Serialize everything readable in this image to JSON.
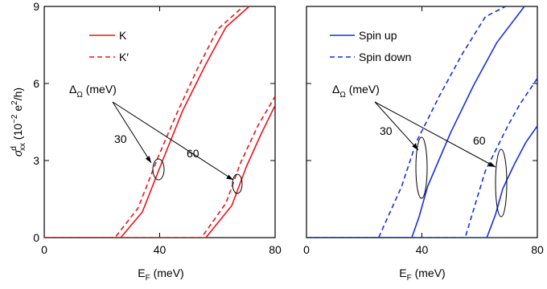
{
  "chart_data": [
    {
      "type": "line",
      "xlim": [
        0,
        80
      ],
      "ylim": [
        0,
        9
      ],
      "xticks": [
        0,
        40,
        80
      ],
      "yticks": [
        0,
        3,
        6,
        9
      ],
      "xlabel": {
        "main": "E",
        "sub": "F",
        "rest": " (meV)"
      },
      "ylabel": {
        "sigma": "σ",
        "sup": "d",
        "sub": "xx",
        "rest1": " (10",
        "exp": "−2",
        "rest2": " e",
        "exp2": "2",
        "rest3": "/h)"
      },
      "legend": {
        "placement": "top-left"
      },
      "series": [
        {
          "name": "K",
          "color": "#e8141c",
          "dash": "solid",
          "x": [
            0,
            26.5,
            34,
            41,
            48,
            56,
            63,
            71
          ],
          "y": [
            0,
            0,
            1.0,
            3.0,
            4.95,
            6.75,
            8.2,
            9.0
          ]
        },
        {
          "name": "K′",
          "color": "#e8141c",
          "dash": "dashed",
          "x": [
            0,
            24.5,
            32.5,
            39.5,
            46,
            53,
            60,
            69
          ],
          "y": [
            0,
            0,
            1.15,
            3.15,
            4.85,
            6.55,
            8.1,
            9.0
          ]
        },
        {
          "name": "",
          "color": "#e8141c",
          "dash": "solid",
          "x": [
            0,
            56,
            65,
            70,
            75,
            80
          ],
          "y": [
            0,
            0,
            1.25,
            2.75,
            4.0,
            5.15
          ]
        },
        {
          "name": "",
          "color": "#e8141c",
          "dash": "dashed",
          "x": [
            0,
            54.5,
            63,
            68,
            74,
            80
          ],
          "y": [
            0,
            0,
            1.35,
            2.9,
            4.35,
            5.5
          ]
        }
      ],
      "annotation": {
        "label_main": "Δ",
        "label_sub": "Ω",
        "label_rest": " (meV)",
        "values": [
          "30",
          "60"
        ]
      }
    },
    {
      "type": "line",
      "xlim": [
        0,
        80
      ],
      "ylim": [
        0,
        9
      ],
      "xticks": [
        0,
        40,
        80
      ],
      "yticks": [
        0,
        3,
        6,
        9
      ],
      "xlabel": {
        "main": "E",
        "sub": "F",
        "rest": " (meV)"
      },
      "legend": {
        "placement": "top-left"
      },
      "series": [
        {
          "name": "Spin up",
          "color": "#1a2fd8",
          "dash": "solid",
          "x": [
            0,
            36.5,
            39,
            42,
            50,
            58,
            66,
            75.5
          ],
          "y": [
            0,
            0,
            0.8,
            2.0,
            4.1,
            5.95,
            7.6,
            9.0
          ]
        },
        {
          "name": "Spin down",
          "color": "#1a2fd8",
          "dash": "dashed",
          "x": [
            0,
            25,
            33,
            38,
            46,
            54,
            62,
            69
          ],
          "y": [
            0,
            0,
            2.0,
            3.7,
            5.5,
            7.15,
            8.6,
            9.0
          ]
        },
        {
          "name": "",
          "color": "#1a2fd8",
          "dash": "solid",
          "x": [
            0,
            62.5,
            65.5,
            68,
            72,
            76,
            80
          ],
          "y": [
            0,
            0,
            0.9,
            1.9,
            2.85,
            3.7,
            4.35
          ]
        },
        {
          "name": "",
          "color": "#1a2fd8",
          "dash": "dashed",
          "x": [
            0,
            55,
            59,
            62,
            66,
            70,
            74,
            80
          ],
          "y": [
            0,
            0,
            1.5,
            2.6,
            3.5,
            4.4,
            5.2,
            6.2
          ]
        }
      ],
      "annotation": {
        "label_main": "Δ",
        "label_sub": "Ω",
        "label_rest": " (meV)",
        "values": [
          "30",
          "60"
        ]
      }
    }
  ]
}
